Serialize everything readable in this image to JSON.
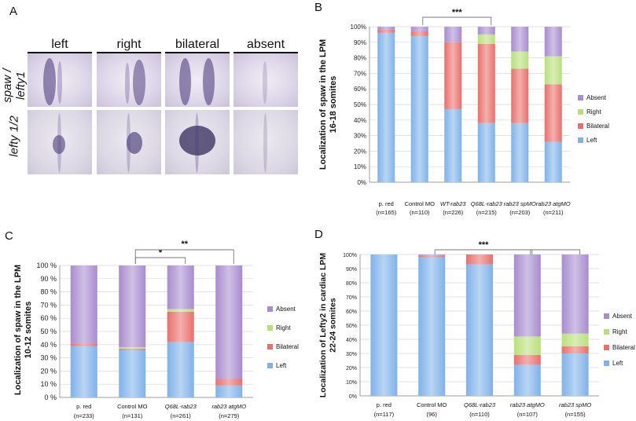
{
  "panelA": {
    "letter": "A",
    "columns": [
      "left",
      "right",
      "bilateral",
      "absent"
    ],
    "row_labels": [
      "spaw /\nlefty1",
      "lefty 1/2"
    ]
  },
  "colors": {
    "Left": "#7fb2ea",
    "Bilateral": "#ea6f6b",
    "Right": "#b8e07a",
    "Absent": "#a88ccf"
  },
  "chart_data": [
    {
      "panel": "B",
      "type": "bar",
      "stacked": true,
      "ylabel": "Localization of spaw in the LPM\n16-18 somites",
      "ylim": [
        0,
        100
      ],
      "yticks": [
        "0%",
        "10%",
        "20%",
        "30%",
        "40%",
        "50%",
        "60%",
        "70%",
        "80%",
        "90%",
        "100%"
      ],
      "categories": [
        "p. red",
        "Control MO",
        "WT-rab23",
        "Q68L-rab23",
        "rab23 spMO",
        "rab23 atgMO"
      ],
      "category_n": [
        "(n=165)",
        "(n=110)",
        "(n=226)",
        "(n=215)",
        "(n=203)",
        "(n=211)"
      ],
      "series": [
        {
          "name": "Left",
          "values": [
            96,
            94,
            47,
            38,
            38,
            26
          ]
        },
        {
          "name": "Bilateral",
          "values": [
            2,
            3,
            43,
            51,
            35,
            37
          ]
        },
        {
          "name": "Right",
          "values": [
            0,
            0,
            0,
            6,
            11,
            18
          ]
        },
        {
          "name": "Absent",
          "values": [
            2,
            3,
            10,
            5,
            16,
            19
          ]
        }
      ],
      "significance": [
        {
          "label": "***"
        }
      ],
      "legend_position": "right"
    },
    {
      "panel": "C",
      "type": "bar",
      "stacked": true,
      "ylabel": "Localization of spaw in the LPM\n10-12 somites",
      "ylim": [
        0,
        100
      ],
      "yticks": [
        "0 %",
        "10 %",
        "20 %",
        "30 %",
        "40 %",
        "50 %",
        "60 %",
        "70 %",
        "80 %",
        "90 %",
        "100 %"
      ],
      "categories": [
        "p. red",
        "Control MO",
        "Q68L-rab23",
        "rab23 atgMO"
      ],
      "category_n": [
        "(n=233)",
        "(n=131)",
        "(n=261)",
        "(n=279)"
      ],
      "series": [
        {
          "name": "Left",
          "values": [
            39,
            36,
            42,
            9
          ]
        },
        {
          "name": "Bilateral",
          "values": [
            2,
            1,
            23,
            5
          ]
        },
        {
          "name": "Right",
          "values": [
            0,
            1,
            2,
            0
          ]
        },
        {
          "name": "Absent",
          "values": [
            59,
            62,
            33,
            86
          ]
        }
      ],
      "significance": [
        {
          "label": "*"
        },
        {
          "label": "**"
        }
      ],
      "legend_position": "right"
    },
    {
      "panel": "D",
      "type": "bar",
      "stacked": true,
      "ylabel": "Localization of Lefty2 in cardiac LPM\n22-24 somites",
      "ylim": [
        0,
        100
      ],
      "yticks": [
        "0%",
        "10%",
        "20%",
        "30%",
        "40%",
        "50%",
        "60%",
        "70%",
        "80%",
        "90%",
        "100%"
      ],
      "categories": [
        "p. red",
        "Control MO",
        "Q68L-rab23",
        "rab23 atgMO",
        "rab23 spMO"
      ],
      "category_n": [
        "(n=117)",
        "(96)",
        "(n=110)",
        "(n=107)",
        "(n=155)"
      ],
      "series": [
        {
          "name": "Left",
          "values": [
            100,
            98,
            93,
            22,
            30
          ]
        },
        {
          "name": "Bilateral",
          "values": [
            0,
            1,
            7,
            7,
            5
          ]
        },
        {
          "name": "Right",
          "values": [
            0,
            0,
            0,
            13,
            9
          ]
        },
        {
          "name": "Absent",
          "values": [
            0,
            1,
            0,
            58,
            56
          ]
        }
      ],
      "significance": [
        {
          "label": "***"
        }
      ],
      "legend_position": "right"
    }
  ]
}
